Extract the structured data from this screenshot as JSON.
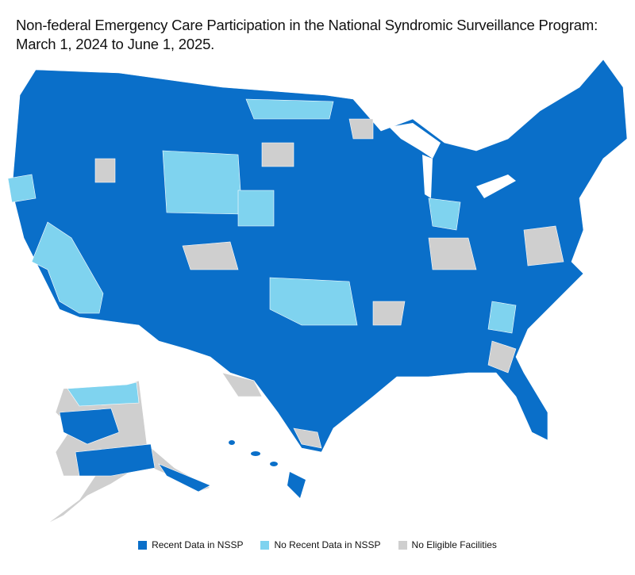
{
  "title": [
    "Non-federal Emergency Care Participation in the National Syndromic Surveillance Program:",
    "March 1, 2024 to June 1, 2025."
  ],
  "legend": [
    {
      "label": "Recent Data in NSSP",
      "color": "#0a6fc9"
    },
    {
      "label": "No Recent Data in NSSP",
      "color": "#7fd3ef"
    },
    {
      "label": "No Eligible Facilities",
      "color": "#cfcfcf"
    }
  ]
}
